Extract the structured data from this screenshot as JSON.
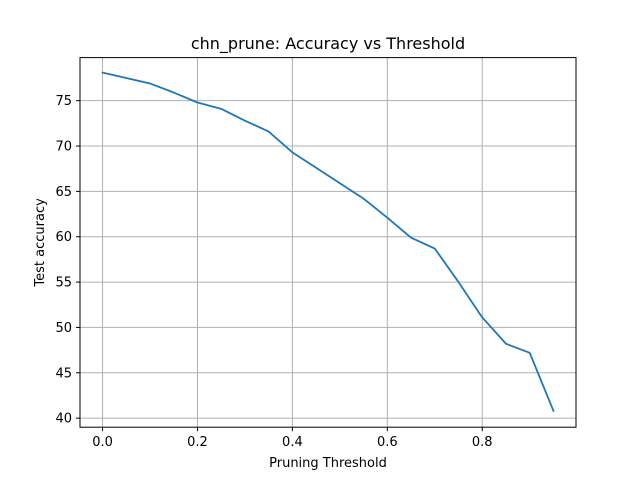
{
  "chart_data": {
    "type": "line",
    "title": "chn_prune: Accuracy vs Threshold",
    "xlabel": "Pruning Threshold",
    "ylabel": "Test accuracy",
    "xlim": [
      -0.0475,
      0.9975
    ],
    "ylim": [
      39.0,
      79.75
    ],
    "xticks": [
      0.0,
      0.2,
      0.4,
      0.6,
      0.8
    ],
    "xtick_labels": [
      "0.0",
      "0.2",
      "0.4",
      "0.6",
      "0.8"
    ],
    "yticks": [
      40,
      45,
      50,
      55,
      60,
      65,
      70,
      75
    ],
    "ytick_labels": [
      "40",
      "45",
      "50",
      "55",
      "60",
      "65",
      "70",
      "75"
    ],
    "grid": true,
    "series": [
      {
        "color": "#1f77b4",
        "x": [
          0.0,
          0.05,
          0.1,
          0.15,
          0.2,
          0.25,
          0.3,
          0.35,
          0.4,
          0.45,
          0.5,
          0.55,
          0.6,
          0.65,
          0.7,
          0.75,
          0.8,
          0.85,
          0.9,
          0.95
        ],
        "y": [
          78.1,
          77.5,
          76.9,
          75.9,
          74.8,
          74.1,
          72.8,
          71.6,
          69.3,
          67.6,
          65.9,
          64.2,
          62.1,
          59.9,
          58.7,
          55.0,
          51.1,
          48.2,
          47.2,
          40.8
        ]
      }
    ]
  }
}
